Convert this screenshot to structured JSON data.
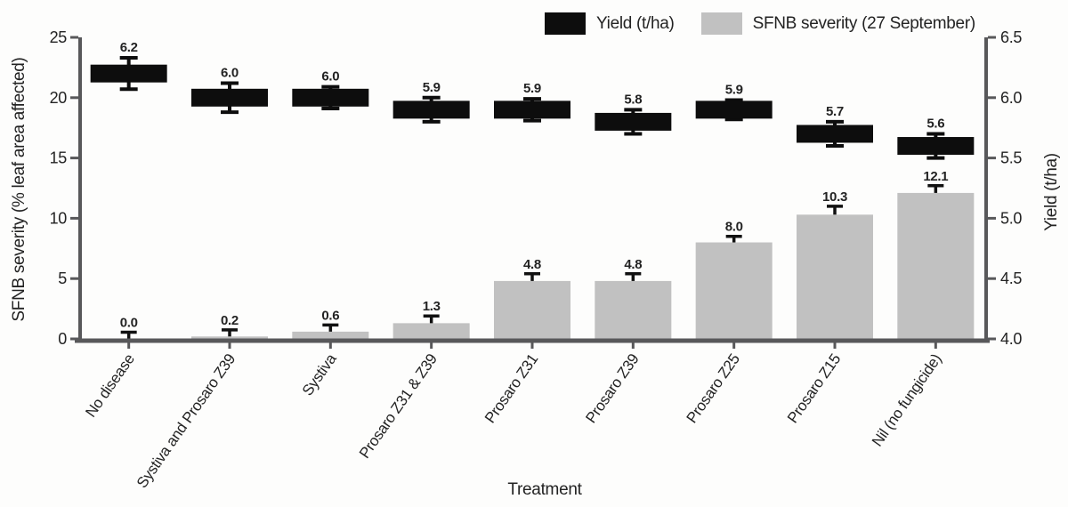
{
  "legend": {
    "yield_label": "Yield (t/ha)",
    "severity_label": "SFNB severity (27 September)"
  },
  "colors": {
    "yield": "#0d0d0d",
    "severity": "#c1c1c1",
    "axis": "#58585a",
    "text": "#232323",
    "error_bar": "#111111"
  },
  "chart_data": {
    "type": "bar",
    "title": "",
    "xlabel": "Treatment",
    "ylabel_left": "SFNB severity (% leaf area affected)",
    "ylabel_right": "Yield (t/ha)",
    "ylim_left": [
      0,
      25
    ],
    "ylim_right": [
      4.0,
      6.5
    ],
    "yticks_left": [
      "0",
      "5",
      "10",
      "15",
      "20",
      "25"
    ],
    "yticks_right": [
      "4.0",
      "4.5",
      "5.0",
      "5.5",
      "6.0",
      "6.5"
    ],
    "grid": false,
    "legend_position": "top",
    "categories": [
      "No disease",
      "Systiva and Prosaro Z39",
      "Systiva",
      "Prosaro Z31 & Z39",
      "Prosaro Z31",
      "Prosaro Z39",
      "Prosaro Z25",
      "Prosaro Z15",
      "Nil (no fungicide)"
    ],
    "series": [
      {
        "name": "Yield (t/ha)",
        "axis": "right",
        "style": "floating-box",
        "color": "#0d0d0d",
        "values": [
          6.2,
          6.0,
          6.0,
          5.9,
          5.9,
          5.8,
          5.9,
          5.7,
          5.6
        ],
        "labels": [
          "6.2",
          "6.0",
          "6.0",
          "5.9",
          "5.9",
          "5.8",
          "5.9",
          "5.7",
          "5.6"
        ],
        "error": [
          0.13,
          0.12,
          0.09,
          0.1,
          0.09,
          0.1,
          0.08,
          0.1,
          0.1
        ]
      },
      {
        "name": "SFNB severity (27 September)",
        "axis": "left",
        "style": "column",
        "color": "#c1c1c1",
        "values": [
          0.0,
          0.2,
          0.6,
          1.3,
          4.8,
          4.8,
          8.0,
          10.3,
          12.1
        ],
        "labels": [
          "0.0",
          "0.2",
          "0.6",
          "1.3",
          "4.8",
          "4.8",
          "8.0",
          "10.3",
          "12.1"
        ],
        "error_upper": [
          0.55,
          0.55,
          0.55,
          0.6,
          0.6,
          0.6,
          0.5,
          0.7,
          0.6
        ]
      }
    ]
  }
}
